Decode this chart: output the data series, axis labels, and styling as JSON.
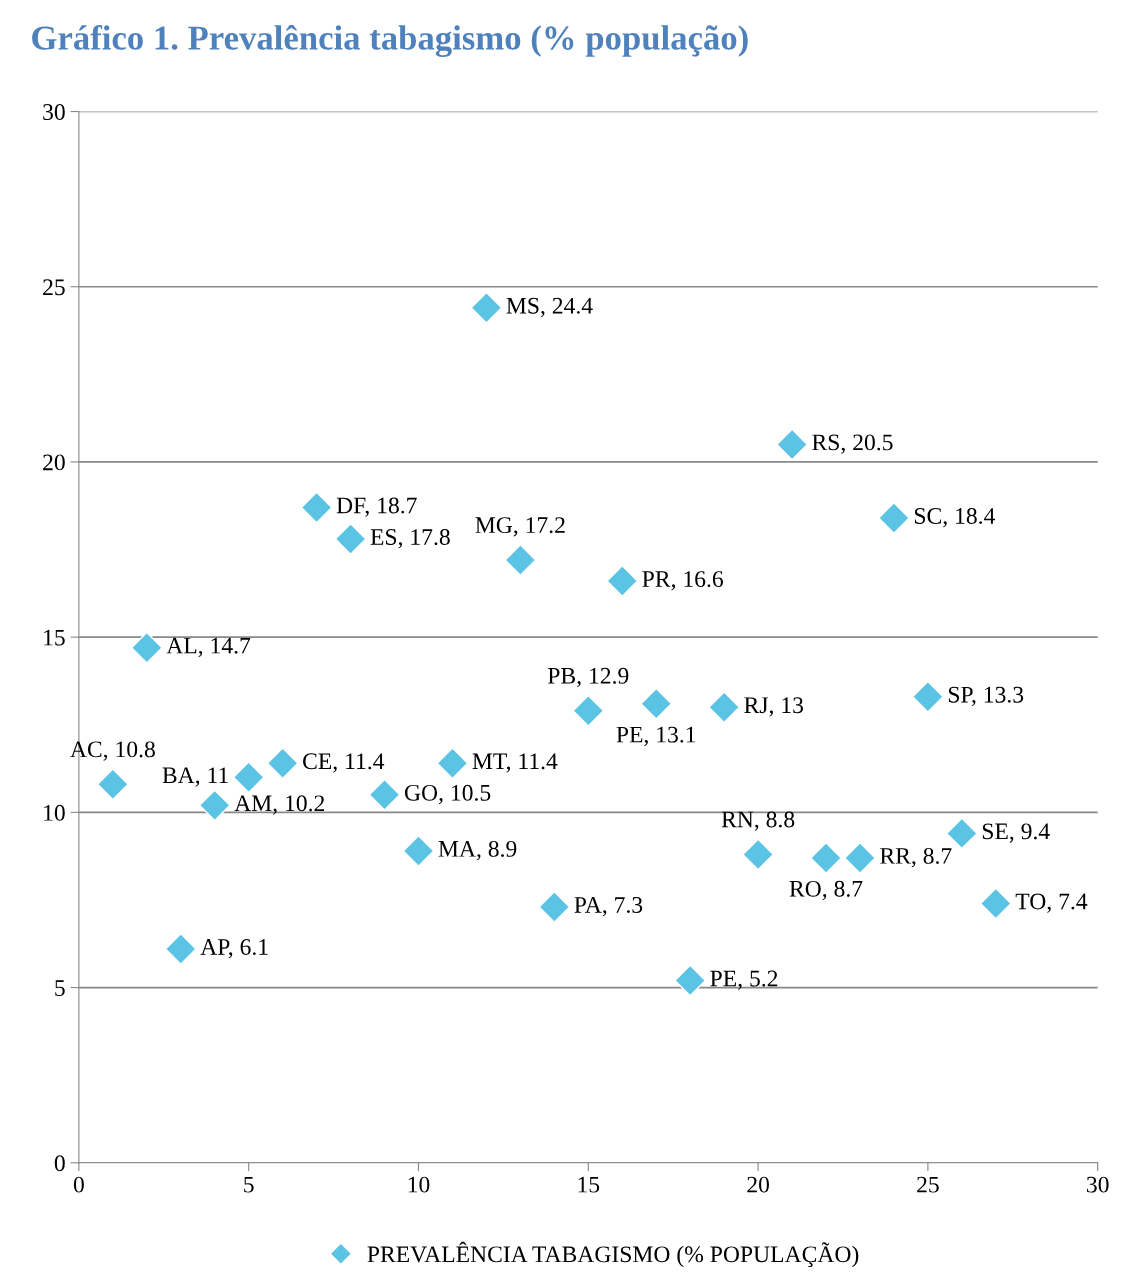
{
  "chart_data": {
    "type": "scatter",
    "title": "Gráfico 1. Prevalência tabagismo (% população)",
    "x": [
      1,
      2,
      3,
      4,
      5,
      6,
      7,
      8,
      9,
      10,
      11,
      12,
      13,
      14,
      15,
      16,
      17,
      18,
      19,
      20,
      21,
      22,
      23,
      24,
      25,
      26,
      27
    ],
    "series": [
      {
        "name": "PREVALÊNCIA TABAGISMO (% POPULAÇÃO)",
        "color": "#5bc3e3",
        "values": [
          10.8,
          14.7,
          6.1,
          10.2,
          11,
          11.4,
          18.7,
          17.8,
          10.5,
          8.9,
          11.4,
          24.4,
          17.2,
          7.3,
          12.9,
          16.6,
          13.1,
          5.2,
          13,
          8.8,
          20.5,
          8.7,
          8.7,
          18.4,
          13.3,
          9.4,
          7.4
        ],
        "value_labels": [
          "AC, 10.8",
          "AL, 14.7",
          "AP, 6.1",
          "AM, 10.2",
          "BA, 11",
          "CE, 11.4",
          "DF, 18.7",
          "ES, 17.8",
          "GO, 10.5",
          "MA, 8.9",
          "MT, 11.4",
          "MS, 24.4",
          "MG, 17.2",
          "PA, 7.3",
          "PB, 12.9",
          "PR, 16.6",
          "PE, 13.1",
          "PE, 5.2",
          "RJ, 13",
          "RN, 8.8",
          "RS, 20.5",
          "RO, 8.7",
          "RR, 8.7",
          "SC, 18.4",
          "SP, 13.3",
          "SE, 9.4",
          "TO, 7.4"
        ]
      }
    ],
    "xlim": [
      0,
      30
    ],
    "xticks": [
      0,
      5,
      10,
      15,
      20,
      25,
      30
    ],
    "ylim": [
      0,
      30
    ],
    "yticks": [
      0,
      5,
      10,
      15,
      20,
      25,
      30
    ],
    "grid": "y",
    "legend": "bottom",
    "marker": "diamond"
  }
}
